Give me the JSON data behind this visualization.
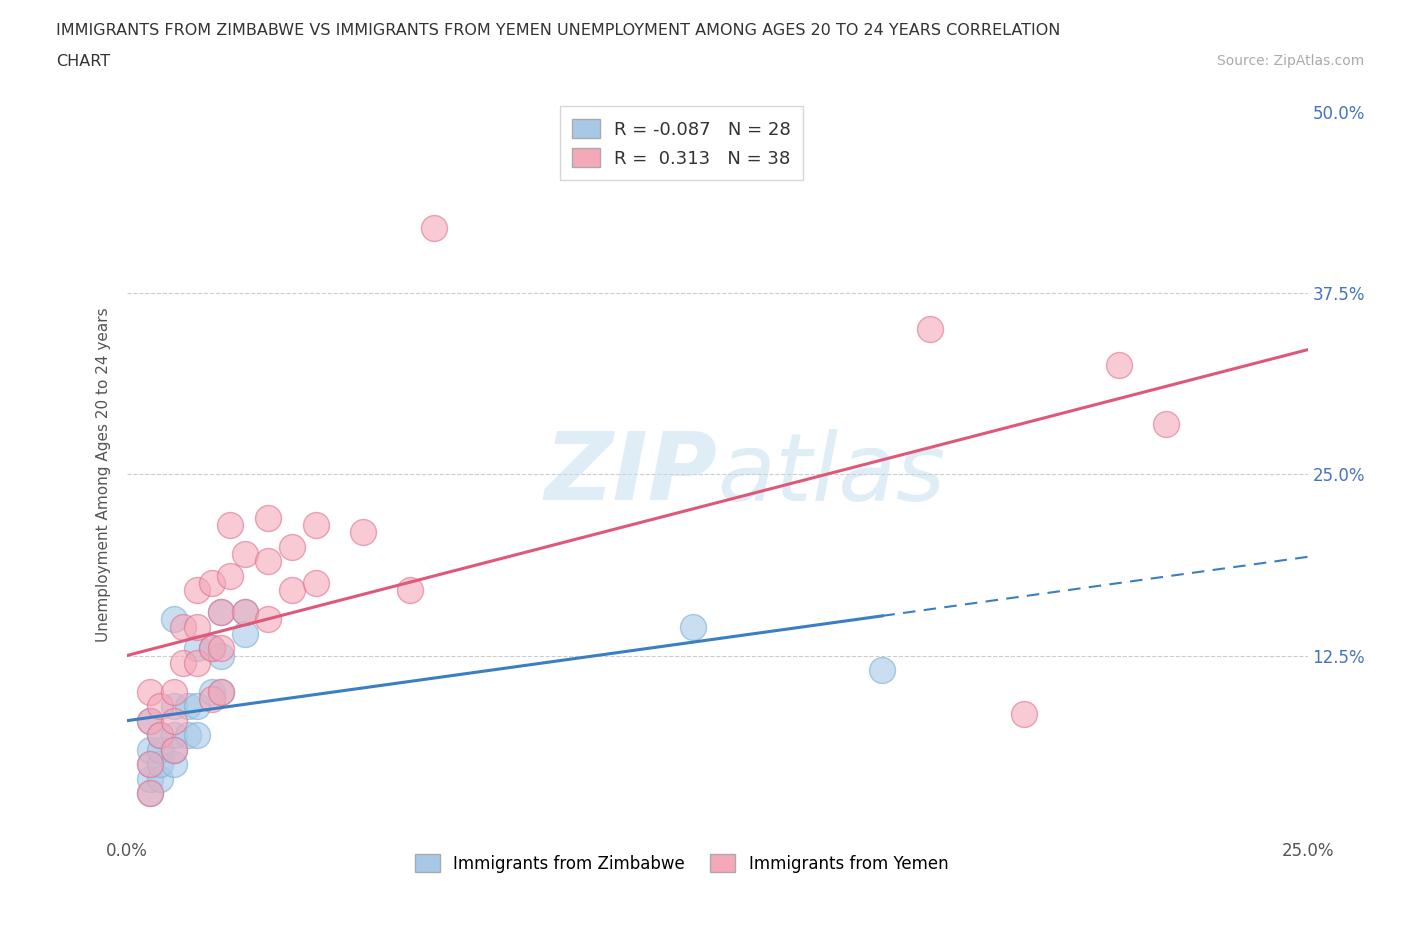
{
  "title_line1": "IMMIGRANTS FROM ZIMBABWE VS IMMIGRANTS FROM YEMEN UNEMPLOYMENT AMONG AGES 20 TO 24 YEARS CORRELATION",
  "title_line2": "CHART",
  "source_text": "Source: ZipAtlas.com",
  "ylabel": "Unemployment Among Ages 20 to 24 years",
  "xlim": [
    0.0,
    0.25
  ],
  "ylim": [
    0.0,
    0.5
  ],
  "zimbabwe_color": "#a8c8e8",
  "zimbabwe_edge": "#7aaed0",
  "yemen_color": "#f4a8b8",
  "yemen_edge": "#e07090",
  "trend_zim_color": "#3a7fc1",
  "trend_yem_color": "#e05878",
  "zimbabwe_R": -0.087,
  "zimbabwe_N": 28,
  "yemen_R": 0.313,
  "yemen_N": 38,
  "legend_label1": "Immigrants from Zimbabwe",
  "legend_label2": "Immigrants from Yemen",
  "watermark": "ZIPatlas",
  "background_color": "#ffffff",
  "zimbabwe_x": [
    0.005,
    0.005,
    0.005,
    0.005,
    0.005,
    0.007,
    0.007,
    0.007,
    0.007,
    0.01,
    0.01,
    0.01,
    0.01,
    0.01,
    0.013,
    0.013,
    0.015,
    0.015,
    0.015,
    0.018,
    0.018,
    0.02,
    0.02,
    0.02,
    0.025,
    0.025,
    0.12,
    0.16
  ],
  "zimbabwe_y": [
    0.03,
    0.04,
    0.05,
    0.06,
    0.08,
    0.04,
    0.05,
    0.06,
    0.07,
    0.05,
    0.06,
    0.07,
    0.09,
    0.15,
    0.07,
    0.09,
    0.07,
    0.09,
    0.13,
    0.1,
    0.13,
    0.1,
    0.125,
    0.155,
    0.14,
    0.155,
    0.145,
    0.115
  ],
  "yemen_x": [
    0.005,
    0.005,
    0.005,
    0.005,
    0.007,
    0.007,
    0.01,
    0.01,
    0.01,
    0.012,
    0.012,
    0.015,
    0.015,
    0.015,
    0.018,
    0.018,
    0.018,
    0.02,
    0.02,
    0.02,
    0.022,
    0.022,
    0.025,
    0.025,
    0.03,
    0.03,
    0.03,
    0.035,
    0.035,
    0.04,
    0.04,
    0.05,
    0.06,
    0.065,
    0.17,
    0.19,
    0.21,
    0.22
  ],
  "yemen_y": [
    0.03,
    0.05,
    0.08,
    0.1,
    0.07,
    0.09,
    0.06,
    0.08,
    0.1,
    0.12,
    0.145,
    0.12,
    0.145,
    0.17,
    0.095,
    0.13,
    0.175,
    0.1,
    0.13,
    0.155,
    0.18,
    0.215,
    0.155,
    0.195,
    0.15,
    0.19,
    0.22,
    0.17,
    0.2,
    0.175,
    0.215,
    0.21,
    0.17,
    0.42,
    0.35,
    0.085,
    0.325,
    0.285
  ]
}
